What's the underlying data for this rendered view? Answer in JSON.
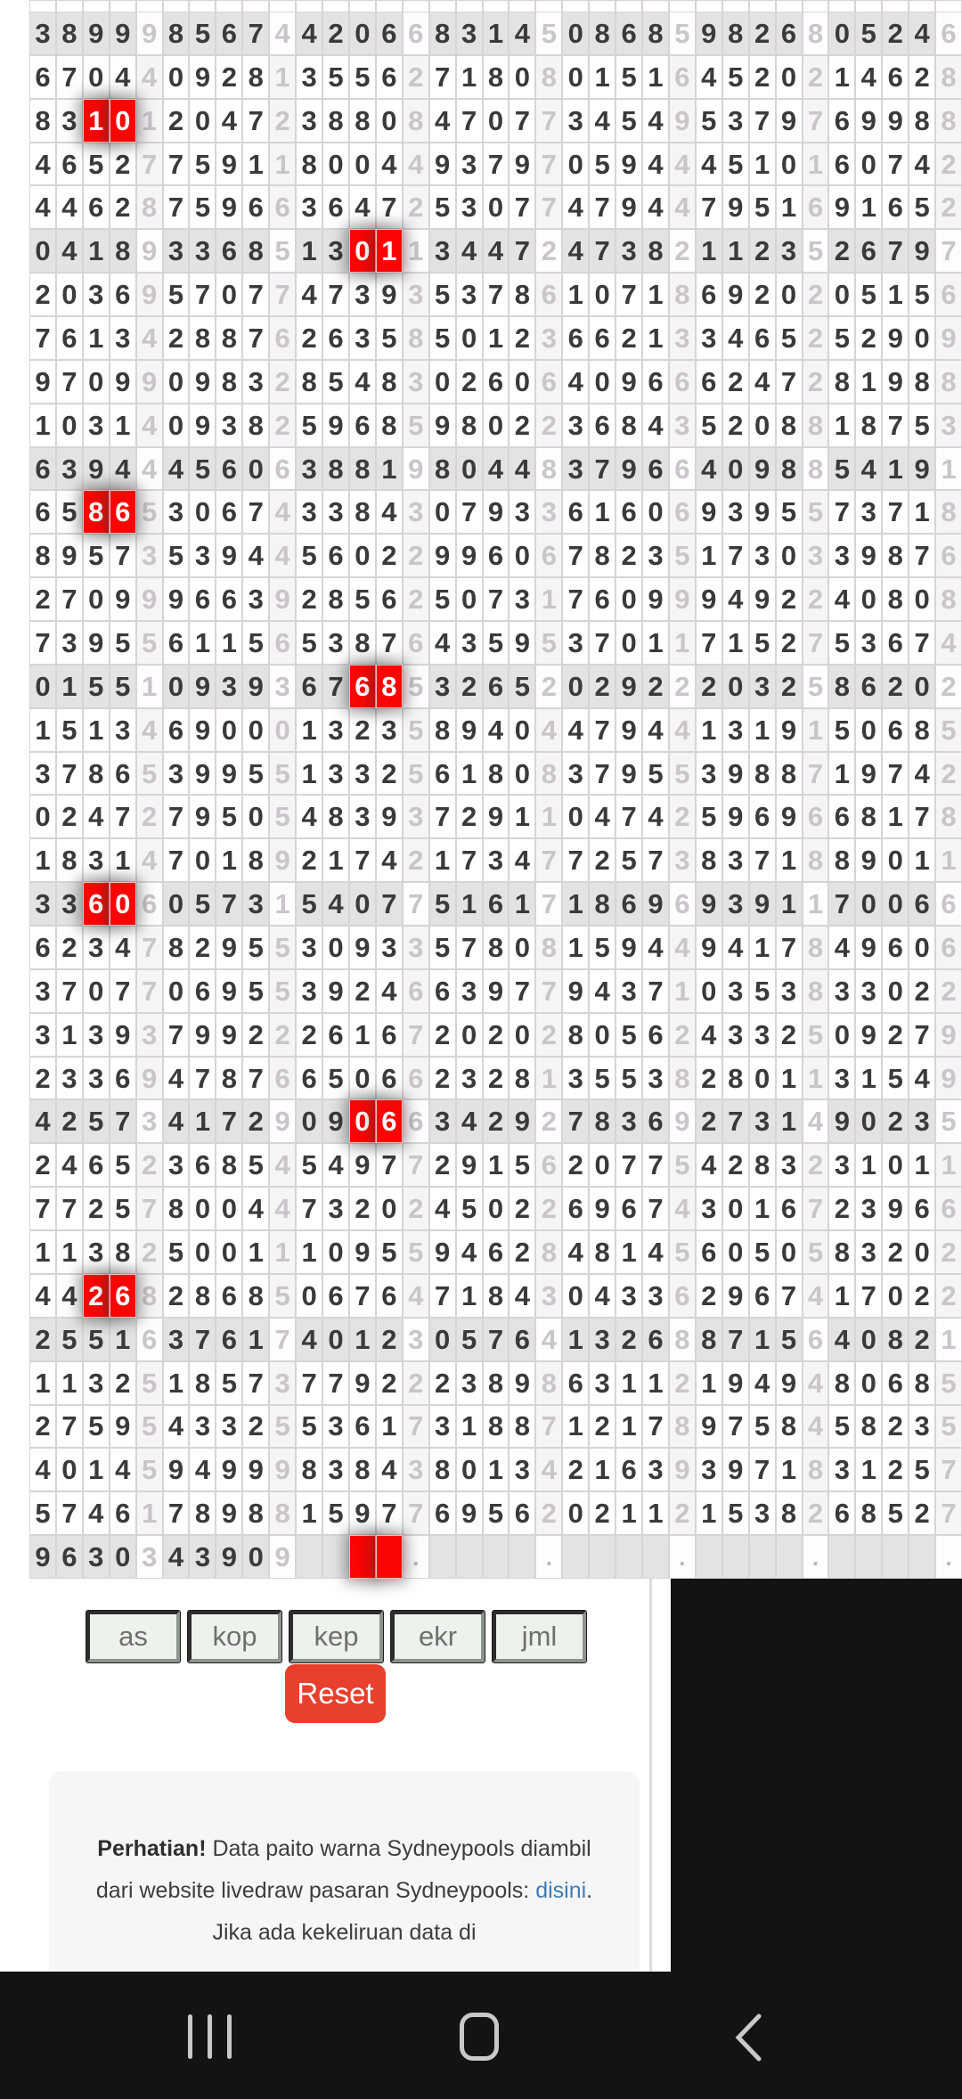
{
  "grid": {
    "columns_per_group": 5,
    "groups_per_row": 7,
    "shaded_rows": [
      1,
      6,
      11,
      16,
      21,
      26,
      31,
      36
    ],
    "highlights": [
      {
        "row": 3,
        "group": 1,
        "positions": [
          3,
          4
        ]
      },
      {
        "row": 6,
        "group": 3,
        "positions": [
          3,
          4
        ]
      },
      {
        "row": 12,
        "group": 1,
        "positions": [
          3,
          4
        ]
      },
      {
        "row": 16,
        "group": 3,
        "positions": [
          3,
          4
        ]
      },
      {
        "row": 21,
        "group": 1,
        "positions": [
          3,
          4
        ]
      },
      {
        "row": 26,
        "group": 3,
        "positions": [
          3,
          4
        ]
      },
      {
        "row": 30,
        "group": 1,
        "positions": [
          3,
          4
        ]
      },
      {
        "row": 36,
        "group": 3,
        "positions": [
          3,
          4
        ]
      }
    ],
    "rows": [
      [
        [
          "3899",
          "9"
        ],
        [
          "8567",
          "4"
        ],
        [
          "4206",
          "6"
        ],
        [
          "8314",
          "5"
        ],
        [
          "0868",
          "5"
        ],
        [
          "9826",
          "8"
        ],
        [
          "0524",
          "6"
        ]
      ],
      [
        [
          "6704",
          "4"
        ],
        [
          "0928",
          "1"
        ],
        [
          "3556",
          "2"
        ],
        [
          "7180",
          "8"
        ],
        [
          "0151",
          "6"
        ],
        [
          "4520",
          "2"
        ],
        [
          "1462",
          "8"
        ]
      ],
      [
        [
          "8310",
          "1"
        ],
        [
          "2047",
          "2"
        ],
        [
          "3880",
          "8"
        ],
        [
          "4707",
          "7"
        ],
        [
          "3454",
          "9"
        ],
        [
          "5379",
          "7"
        ],
        [
          "6998",
          "8"
        ]
      ],
      [
        [
          "4652",
          "7"
        ],
        [
          "7591",
          "1"
        ],
        [
          "8004",
          "4"
        ],
        [
          "9379",
          "7"
        ],
        [
          "0594",
          "4"
        ],
        [
          "4510",
          "1"
        ],
        [
          "6074",
          "2"
        ]
      ],
      [
        [
          "4462",
          "8"
        ],
        [
          "7596",
          "6"
        ],
        [
          "3647",
          "2"
        ],
        [
          "5307",
          "7"
        ],
        [
          "4794",
          "4"
        ],
        [
          "7951",
          "6"
        ],
        [
          "9165",
          "2"
        ]
      ],
      [
        [
          "0418",
          "9"
        ],
        [
          "3368",
          "5"
        ],
        [
          "1301",
          "1"
        ],
        [
          "3447",
          "2"
        ],
        [
          "4738",
          "2"
        ],
        [
          "1123",
          "5"
        ],
        [
          "2679",
          "7"
        ]
      ],
      [
        [
          "2036",
          "9"
        ],
        [
          "5707",
          "7"
        ],
        [
          "4739",
          "3"
        ],
        [
          "5378",
          "6"
        ],
        [
          "1071",
          "8"
        ],
        [
          "6920",
          "2"
        ],
        [
          "0515",
          "6"
        ]
      ],
      [
        [
          "7613",
          "4"
        ],
        [
          "2887",
          "6"
        ],
        [
          "2635",
          "8"
        ],
        [
          "5012",
          "3"
        ],
        [
          "6621",
          "3"
        ],
        [
          "3465",
          "2"
        ],
        [
          "5290",
          "9"
        ]
      ],
      [
        [
          "9709",
          "9"
        ],
        [
          "0983",
          "2"
        ],
        [
          "8548",
          "3"
        ],
        [
          "0260",
          "6"
        ],
        [
          "4096",
          "6"
        ],
        [
          "6247",
          "2"
        ],
        [
          "8198",
          "8"
        ]
      ],
      [
        [
          "1031",
          "4"
        ],
        [
          "0938",
          "2"
        ],
        [
          "5968",
          "5"
        ],
        [
          "9802",
          "2"
        ],
        [
          "3684",
          "3"
        ],
        [
          "5208",
          "8"
        ],
        [
          "1875",
          "3"
        ]
      ],
      [
        [
          "6394",
          "4"
        ],
        [
          "4560",
          "6"
        ],
        [
          "3881",
          "9"
        ],
        [
          "8044",
          "8"
        ],
        [
          "3796",
          "6"
        ],
        [
          "4098",
          "8"
        ],
        [
          "5419",
          "1"
        ]
      ],
      [
        [
          "6586",
          "5"
        ],
        [
          "3067",
          "4"
        ],
        [
          "3384",
          "3"
        ],
        [
          "0793",
          "3"
        ],
        [
          "6160",
          "6"
        ],
        [
          "9395",
          "5"
        ],
        [
          "7371",
          "8"
        ]
      ],
      [
        [
          "8957",
          "3"
        ],
        [
          "5394",
          "4"
        ],
        [
          "5602",
          "2"
        ],
        [
          "9960",
          "6"
        ],
        [
          "7823",
          "5"
        ],
        [
          "1730",
          "3"
        ],
        [
          "3987",
          "6"
        ]
      ],
      [
        [
          "2709",
          "9"
        ],
        [
          "9663",
          "9"
        ],
        [
          "2856",
          "2"
        ],
        [
          "5073",
          "1"
        ],
        [
          "7609",
          "9"
        ],
        [
          "9492",
          "2"
        ],
        [
          "4080",
          "8"
        ]
      ],
      [
        [
          "7395",
          "5"
        ],
        [
          "6115",
          "6"
        ],
        [
          "5387",
          "6"
        ],
        [
          "4359",
          "5"
        ],
        [
          "3701",
          "1"
        ],
        [
          "7152",
          "7"
        ],
        [
          "5367",
          "4"
        ]
      ],
      [
        [
          "0155",
          "1"
        ],
        [
          "0939",
          "3"
        ],
        [
          "6768",
          "5"
        ],
        [
          "3265",
          "2"
        ],
        [
          "0292",
          "2"
        ],
        [
          "2032",
          "5"
        ],
        [
          "8620",
          "2"
        ]
      ],
      [
        [
          "1513",
          "4"
        ],
        [
          "6900",
          "0"
        ],
        [
          "1323",
          "5"
        ],
        [
          "8940",
          "4"
        ],
        [
          "4794",
          "4"
        ],
        [
          "1319",
          "1"
        ],
        [
          "5068",
          "5"
        ]
      ],
      [
        [
          "3786",
          "5"
        ],
        [
          "3995",
          "5"
        ],
        [
          "1332",
          "5"
        ],
        [
          "6180",
          "8"
        ],
        [
          "3795",
          "5"
        ],
        [
          "3988",
          "7"
        ],
        [
          "1974",
          "2"
        ]
      ],
      [
        [
          "0247",
          "2"
        ],
        [
          "7950",
          "5"
        ],
        [
          "4839",
          "3"
        ],
        [
          "7291",
          "1"
        ],
        [
          "0474",
          "2"
        ],
        [
          "5969",
          "6"
        ],
        [
          "6817",
          "8"
        ]
      ],
      [
        [
          "1831",
          "4"
        ],
        [
          "7018",
          "9"
        ],
        [
          "2174",
          "2"
        ],
        [
          "1734",
          "7"
        ],
        [
          "7257",
          "3"
        ],
        [
          "8371",
          "8"
        ],
        [
          "8901",
          "1"
        ]
      ],
      [
        [
          "3360",
          "6"
        ],
        [
          "0573",
          "1"
        ],
        [
          "5407",
          "7"
        ],
        [
          "5161",
          "7"
        ],
        [
          "1869",
          "6"
        ],
        [
          "9391",
          "1"
        ],
        [
          "7006",
          "6"
        ]
      ],
      [
        [
          "6234",
          "7"
        ],
        [
          "8295",
          "5"
        ],
        [
          "3093",
          "3"
        ],
        [
          "5780",
          "8"
        ],
        [
          "1594",
          "4"
        ],
        [
          "9417",
          "8"
        ],
        [
          "4960",
          "6"
        ]
      ],
      [
        [
          "3707",
          "7"
        ],
        [
          "0695",
          "5"
        ],
        [
          "3924",
          "6"
        ],
        [
          "6397",
          "7"
        ],
        [
          "9437",
          "1"
        ],
        [
          "0353",
          "8"
        ],
        [
          "3302",
          "2"
        ]
      ],
      [
        [
          "3139",
          "3"
        ],
        [
          "7992",
          "2"
        ],
        [
          "2616",
          "7"
        ],
        [
          "2020",
          "2"
        ],
        [
          "8056",
          "2"
        ],
        [
          "4332",
          "5"
        ],
        [
          "0927",
          "9"
        ]
      ],
      [
        [
          "2336",
          "9"
        ],
        [
          "4787",
          "6"
        ],
        [
          "6506",
          "6"
        ],
        [
          "2328",
          "1"
        ],
        [
          "3553",
          "8"
        ],
        [
          "2801",
          "1"
        ],
        [
          "3154",
          "9"
        ]
      ],
      [
        [
          "4257",
          "3"
        ],
        [
          "4172",
          "9"
        ],
        [
          "0906",
          "6"
        ],
        [
          "3429",
          "2"
        ],
        [
          "7836",
          "9"
        ],
        [
          "2731",
          "4"
        ],
        [
          "9023",
          "5"
        ]
      ],
      [
        [
          "2465",
          "2"
        ],
        [
          "3685",
          "4"
        ],
        [
          "5497",
          "7"
        ],
        [
          "2915",
          "6"
        ],
        [
          "2077",
          "5"
        ],
        [
          "4283",
          "2"
        ],
        [
          "3101",
          "1"
        ]
      ],
      [
        [
          "7725",
          "7"
        ],
        [
          "8004",
          "4"
        ],
        [
          "7320",
          "2"
        ],
        [
          "4502",
          "2"
        ],
        [
          "6967",
          "4"
        ],
        [
          "3016",
          "7"
        ],
        [
          "2396",
          "6"
        ]
      ],
      [
        [
          "1138",
          "2"
        ],
        [
          "5001",
          "1"
        ],
        [
          "1095",
          "5"
        ],
        [
          "9462",
          "8"
        ],
        [
          "4814",
          "5"
        ],
        [
          "6050",
          "5"
        ],
        [
          "8320",
          "2"
        ]
      ],
      [
        [
          "4426",
          "8"
        ],
        [
          "2868",
          "5"
        ],
        [
          "0676",
          "4"
        ],
        [
          "7184",
          "3"
        ],
        [
          "0433",
          "6"
        ],
        [
          "2967",
          "4"
        ],
        [
          "1702",
          "2"
        ]
      ],
      [
        [
          "2551",
          "6"
        ],
        [
          "3761",
          "7"
        ],
        [
          "4012",
          "3"
        ],
        [
          "0576",
          "4"
        ],
        [
          "1326",
          "8"
        ],
        [
          "8715",
          "6"
        ],
        [
          "4082",
          "1"
        ]
      ],
      [
        [
          "1132",
          "5"
        ],
        [
          "1857",
          "3"
        ],
        [
          "7792",
          "2"
        ],
        [
          "2389",
          "8"
        ],
        [
          "6311",
          "2"
        ],
        [
          "1949",
          "4"
        ],
        [
          "8068",
          "5"
        ]
      ],
      [
        [
          "2759",
          "5"
        ],
        [
          "4332",
          "5"
        ],
        [
          "5361",
          "7"
        ],
        [
          "3188",
          "7"
        ],
        [
          "1217",
          "8"
        ],
        [
          "9758",
          "4"
        ],
        [
          "5823",
          "5"
        ]
      ],
      [
        [
          "4014",
          "5"
        ],
        [
          "9499",
          "9"
        ],
        [
          "8384",
          "3"
        ],
        [
          "8013",
          "4"
        ],
        [
          "2163",
          "9"
        ],
        [
          "3971",
          "8"
        ],
        [
          "3125",
          "7"
        ]
      ],
      [
        [
          "5746",
          "1"
        ],
        [
          "7898",
          "8"
        ],
        [
          "1597",
          "7"
        ],
        [
          "6956",
          "2"
        ],
        [
          "0211",
          "2"
        ],
        [
          "1538",
          "2"
        ],
        [
          "6852",
          "7"
        ]
      ],
      [
        [
          "9630",
          "3"
        ],
        [
          "4390",
          "9"
        ],
        [
          "",
          "."
        ],
        [
          "",
          "."
        ],
        [
          "",
          "."
        ],
        [
          "",
          "."
        ],
        [
          "",
          "."
        ]
      ]
    ]
  },
  "controls": {
    "filters": [
      "as",
      "kop",
      "kep",
      "ekr",
      "jml"
    ],
    "reset_label": "Reset"
  },
  "notice": {
    "bold": "Perhatian!",
    "before_link": " Data paito warna Sydneypools diambil dari website livedraw pasaran Sydneypools: ",
    "link": "disini",
    "after_link": ". Jika ada kekeliruan data di"
  },
  "colors": {
    "highlight_red": "#fb0404",
    "reset_bg": "#e8402c",
    "link_blue": "#3b7cb8",
    "shaded_row": "#e5e2e5",
    "grid_border": "#d7d3d7",
    "digit": "#3a3a3a",
    "sum_digit": "#cac5ca",
    "black_region": "#131313",
    "nav_icon": "#c9c9c9"
  }
}
